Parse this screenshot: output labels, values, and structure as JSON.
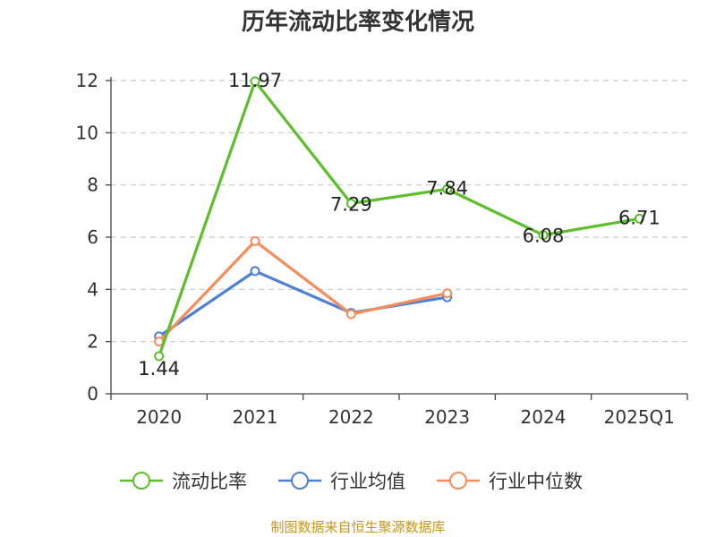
{
  "chart_data": {
    "type": "line",
    "title": "历年流动比率变化情况",
    "categories": [
      "2020",
      "2021",
      "2022",
      "2023",
      "2024",
      "2025Q1"
    ],
    "ylim": [
      0,
      12
    ],
    "yticks": [
      0,
      2,
      4,
      6,
      8,
      10,
      12
    ],
    "grid": true,
    "legend_position": "bottom",
    "series": [
      {
        "name": "流动比率",
        "color": "#5cbf2a",
        "values": [
          1.44,
          11.97,
          7.29,
          7.84,
          6.08,
          6.71
        ],
        "labels": [
          "1.44",
          "11.97",
          "7.29",
          "7.84",
          "6.08",
          "6.71"
        ]
      },
      {
        "name": "行业均值",
        "color": "#4e7fd8",
        "values": [
          2.2,
          4.7,
          3.1,
          3.7,
          null,
          null
        ]
      },
      {
        "name": "行业中位数",
        "color": "#f58d5b",
        "values": [
          2.0,
          5.85,
          3.05,
          3.85,
          null,
          null
        ]
      }
    ]
  },
  "footer": "制图数据来自恒生聚源数据库"
}
